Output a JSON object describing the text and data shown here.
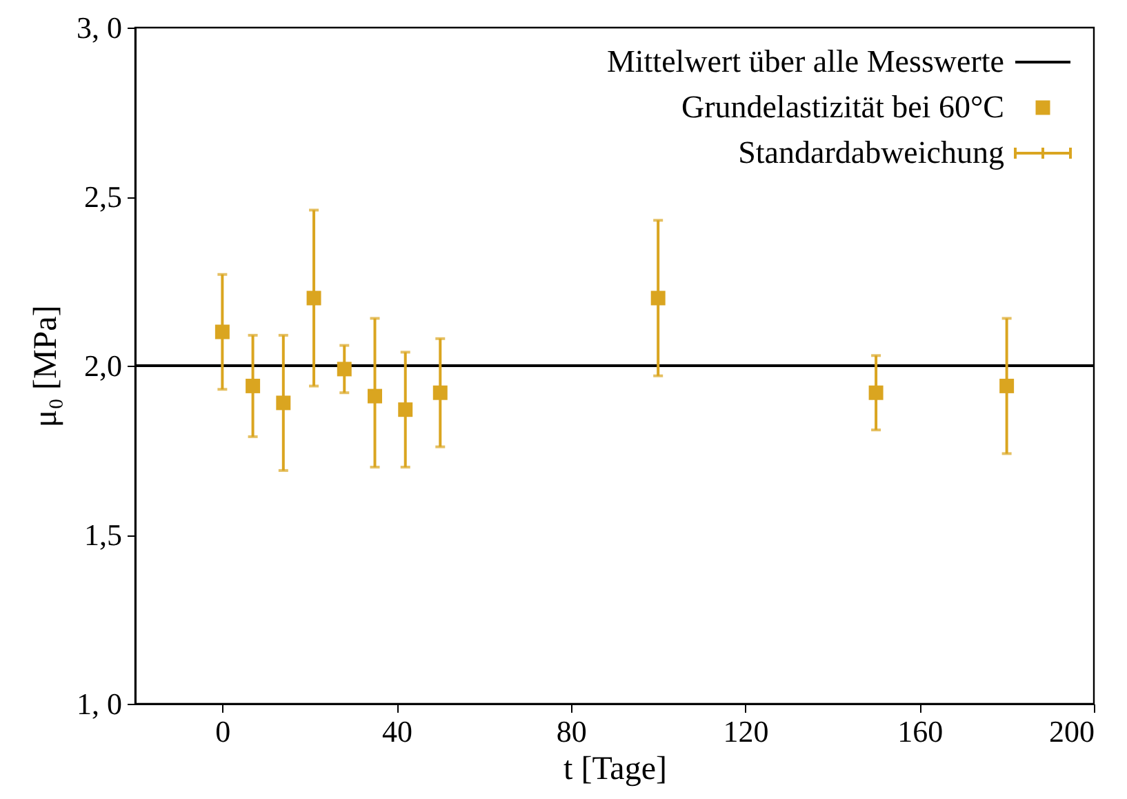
{
  "chart_data": {
    "type": "scatter",
    "xlabel": "t [Tage]",
    "ylabel": "μ₀ [MPa]",
    "x": [
      0,
      7,
      14,
      21,
      28,
      35,
      42,
      50,
      100,
      150,
      180
    ],
    "series": [
      {
        "name": "Grundelastizität bei 60°C",
        "color": "#daa520",
        "values": [
          2.1,
          1.94,
          1.89,
          2.2,
          1.99,
          1.91,
          1.87,
          1.92,
          2.2,
          1.92,
          1.94
        ],
        "errors": [
          [
            1.93,
            2.27
          ],
          [
            1.79,
            2.09
          ],
          [
            1.69,
            2.09
          ],
          [
            1.94,
            2.46
          ],
          [
            1.92,
            2.06
          ],
          [
            1.7,
            2.14
          ],
          [
            1.7,
            2.04
          ],
          [
            1.76,
            2.08
          ],
          [
            1.97,
            2.43
          ],
          [
            1.81,
            2.03
          ],
          [
            1.74,
            2.14
          ]
        ]
      }
    ],
    "annotations": [
      "Standardabweichung"
    ],
    "ref_lines": [
      {
        "axis": "y",
        "value": 2.0,
        "label": "Mittelwert über alle Messwerte",
        "color": "#000000"
      }
    ],
    "xlim": [
      -20,
      200
    ],
    "xticks": [
      0,
      40,
      80,
      120,
      160,
      200
    ],
    "ylim": [
      1.0,
      3.0
    ],
    "yticks": [
      {
        "value": 1.0,
        "label": "1, 0"
      },
      {
        "value": 1.5,
        "label": "1,5"
      },
      {
        "value": 2.0,
        "label": "2,0"
      },
      {
        "value": 2.5,
        "label": "2,5"
      },
      {
        "value": 3.0,
        "label": "3, 0"
      }
    ],
    "marker": "square",
    "legend": "top right",
    "grid": false
  }
}
